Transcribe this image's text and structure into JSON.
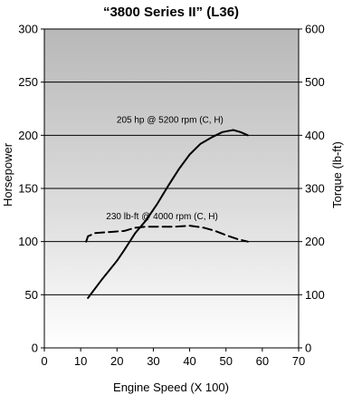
{
  "chart_data": {
    "type": "line",
    "title": "“3800 Series II” (L36)",
    "xlabel": "Engine Speed (X 100)",
    "ylabel_left": "Horsepower",
    "ylabel_right": "Torque (lb-ft)",
    "xlim": [
      0,
      70
    ],
    "ylim_left": [
      0,
      300
    ],
    "ylim_right": [
      0,
      600
    ],
    "x_ticks": [
      "0",
      "10",
      "20",
      "30",
      "40",
      "50",
      "60",
      "70"
    ],
    "y_ticks_left": [
      "0",
      "50",
      "100",
      "150",
      "200",
      "250",
      "300"
    ],
    "y_ticks_right": [
      "0",
      "100",
      "200",
      "300",
      "400",
      "500",
      "600"
    ],
    "grid": "horizontal",
    "background": "gradient",
    "series": [
      {
        "axis": "left",
        "style": "solid",
        "x": [
          12,
          16,
          20,
          22,
          25,
          28,
          31,
          34,
          37,
          40,
          43,
          46,
          49,
          52,
          54,
          56
        ],
        "y": [
          47,
          65,
          82,
          92,
          108,
          120,
          135,
          152,
          168,
          182,
          192,
          198,
          203,
          205,
          203,
          200
        ]
      },
      {
        "axis": "right",
        "style": "dashed",
        "x": [
          11.5,
          12,
          14,
          18,
          22,
          25,
          28,
          32,
          36,
          40,
          44,
          47,
          50,
          53,
          56
        ],
        "y": [
          200,
          210,
          216,
          218,
          220,
          226,
          228,
          228,
          228,
          230,
          226,
          220,
          212,
          205,
          200
        ]
      }
    ],
    "annotations": [
      {
        "text": "205 hp @ 5200 rpm (C, H)",
        "x": 34.6,
        "y_left": 212
      },
      {
        "text": "230 lb-ft @ 4000 rpm (C, H)",
        "x": 32.4,
        "y_left": 121
      }
    ]
  }
}
